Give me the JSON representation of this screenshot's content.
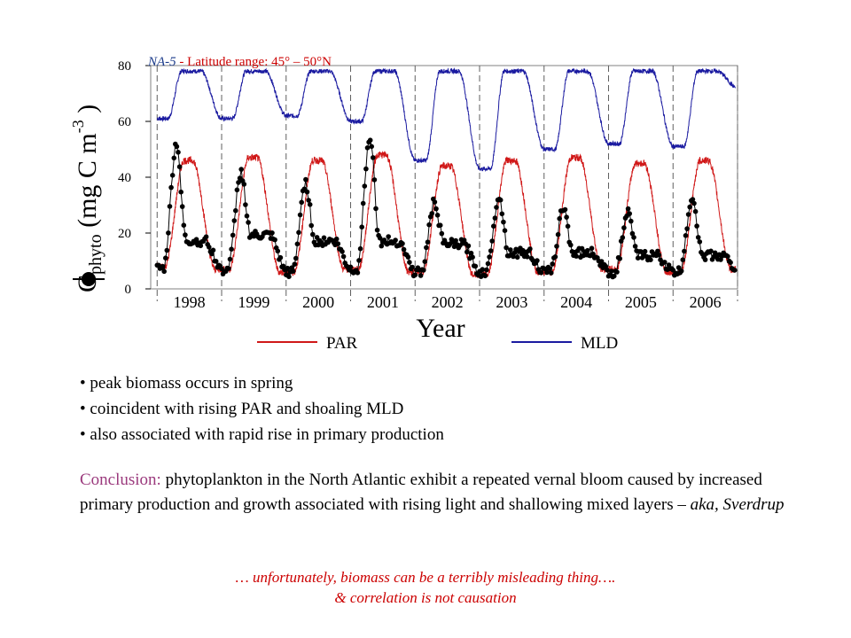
{
  "colors": {
    "par": "#d01818",
    "mld": "#1a1aa0",
    "bio": "#000000",
    "frame": "#808080",
    "conclusion_label": "#9b3a7d",
    "footnote": "#cc0000"
  },
  "chart_data": {
    "type": "line",
    "title": "NA-5 - Latitude range: 45° – 50°N",
    "region": "NA-5",
    "subtitle_rest": " - Latitude range: 45° – 50°N",
    "xlabel": "Year",
    "ylabel": {
      "main": "C",
      "sub": "phyto",
      "unit": "(mg C m",
      "sup": "-3",
      "close": ")"
    },
    "ylim": [
      0,
      80
    ],
    "yticks": [
      "0",
      "20",
      "40",
      "60",
      "80"
    ],
    "xlim": [
      1997.9,
      2007.0
    ],
    "year_ticks": [
      "1998",
      "1999",
      "2000",
      "2001",
      "2002",
      "2003",
      "2004",
      "2005",
      "2006"
    ],
    "grid": "dashed vertical lines at year boundaries",
    "legend_position": "bottom",
    "series": [
      {
        "name": "PAR",
        "style": "thin red line",
        "annual_min": [
          8,
          7,
          6,
          7,
          6,
          5,
          6,
          7,
          6,
          7
        ],
        "annual_peak": [
          46,
          47,
          46,
          48,
          44,
          46,
          47,
          45,
          46
        ]
      },
      {
        "name": "MLD",
        "style": "thin blue line",
        "winter_min": [
          61,
          61,
          62,
          60,
          46,
          43,
          50,
          52,
          51,
          72
        ],
        "summer_plateau": [
          78,
          78,
          78,
          78,
          78,
          78,
          78,
          78,
          78
        ]
      },
      {
        "name": "Cphyto",
        "style": "black line with filled circle markers",
        "annual_min": [
          7,
          7,
          6,
          7,
          6,
          6,
          6,
          6,
          6,
          7
        ],
        "spring_peak": [
          52,
          42,
          38,
          55,
          31,
          33,
          29,
          27,
          33
        ],
        "autumn_level": [
          17,
          19,
          17,
          17,
          16,
          13,
          13,
          12,
          12
        ]
      }
    ]
  },
  "legend": {
    "par_label": "PAR",
    "mld_label": "MLD"
  },
  "bullets": [
    "peak biomass occurs in spring",
    "coincident with rising PAR and shoaling MLD",
    "also associated with rapid rise in primary production"
  ],
  "conclusion": {
    "lead": "Conclusion:",
    "body": " phytoplankton in the North Atlantic exhibit a repeated vernal bloom caused by increased primary production and growth associated with rising light and shallowing mixed layers – ",
    "aka": "aka, Sverdrup"
  },
  "footnote": {
    "line1": "… unfortunately, biomass can be a terribly misleading thing….",
    "line2": "& correlation is not causation"
  }
}
